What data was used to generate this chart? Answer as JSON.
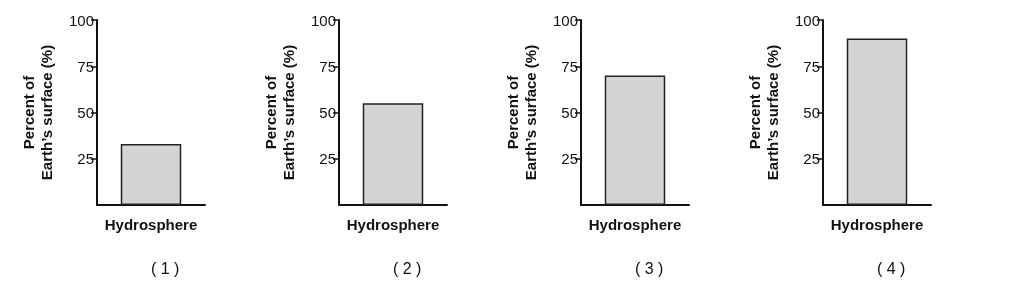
{
  "chart_data": [
    {
      "type": "bar",
      "categories": [
        "Hydrosphere"
      ],
      "values": [
        33
      ],
      "color": "#d3d4d5",
      "ylabel": "Percent of\nEarth’s surface (%)",
      "ylim": [
        0,
        100
      ],
      "yticks": [
        25,
        50,
        75,
        100
      ],
      "annotations": [
        "( 1 )"
      ]
    },
    {
      "type": "bar",
      "categories": [
        "Hydrosphere"
      ],
      "values": [
        55
      ],
      "color": "#d3d4d5",
      "ylabel": "Percent of\nEarth’s surface (%)",
      "ylim": [
        0,
        100
      ],
      "yticks": [
        25,
        50,
        75,
        100
      ],
      "annotations": [
        "( 2 )"
      ]
    },
    {
      "type": "bar",
      "categories": [
        "Hydrosphere"
      ],
      "values": [
        70
      ],
      "color": "#d3d4d5",
      "ylabel": "Percent of\nEarth’s surface (%)",
      "ylim": [
        0,
        100
      ],
      "yticks": [
        25,
        50,
        75,
        100
      ],
      "annotations": [
        "( 3 )"
      ]
    },
    {
      "type": "bar",
      "categories": [
        "Hydrosphere"
      ],
      "values": [
        90
      ],
      "color": "#d3d4d5",
      "ylabel": "Percent of\nEarth’s surface (%)",
      "ylim": [
        0,
        100
      ],
      "yticks": [
        25,
        50,
        75,
        100
      ],
      "annotations": [
        "( 4 )"
      ]
    }
  ]
}
